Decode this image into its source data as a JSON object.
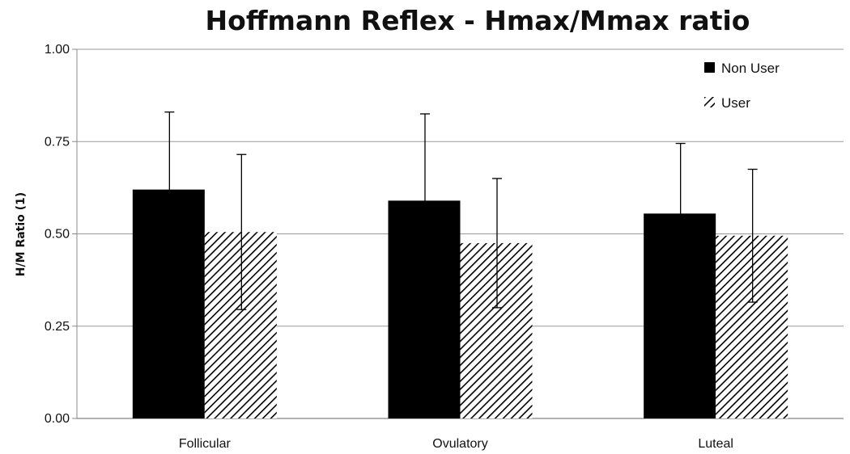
{
  "chart_data": {
    "type": "bar",
    "title": "Hoffmann Reflex - Hmax/Mmax ratio",
    "ylabel": "H/M Ratio (1)",
    "xlabel": "",
    "categories": [
      "Follicular",
      "Ovulatory",
      "Luteal"
    ],
    "series": [
      {
        "name": "Non User",
        "values": [
          0.62,
          0.59,
          0.555
        ],
        "error": [
          0.21,
          0.235,
          0.19
        ],
        "color": "#000000",
        "pattern": "solid"
      },
      {
        "name": "User",
        "values": [
          0.505,
          0.475,
          0.495
        ],
        "error": [
          0.21,
          0.175,
          0.18
        ],
        "color": "#000000",
        "pattern": "hatched"
      }
    ],
    "ylim": [
      0,
      1.0
    ],
    "yticks": [
      "0.00",
      "0.25",
      "0.50",
      "0.75",
      "1.00"
    ],
    "grid": true,
    "legend_position": "top-right"
  }
}
